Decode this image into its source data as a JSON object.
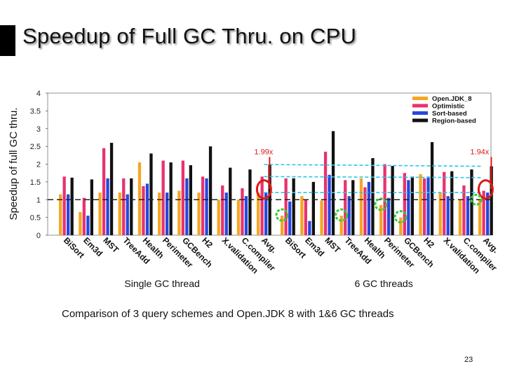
{
  "slide": {
    "title": "Speedup of Full GC Thru. on CPU",
    "caption": "Comparison of 3 query schemes and Open.JDK 8 with 1&6 GC threads",
    "page_number": "23"
  },
  "chart_data": {
    "type": "bar",
    "ylabel": "Speedup of full GC thru.",
    "ylim": [
      0,
      4
    ],
    "yticks": [
      "0",
      "0.5",
      "1",
      "1.5",
      "2",
      "2.5",
      "3",
      "3.5",
      "4"
    ],
    "reference_line": 1,
    "legend_position": "top-right",
    "groups": [
      {
        "label": "Single GC thread",
        "categories": [
          "BiSort",
          "Em3d",
          "MST",
          "TreeAdd",
          "Health",
          "Perimeter",
          "GCBench",
          "H2",
          "X.validation",
          "C.compiler",
          "Avg."
        ],
        "series": [
          {
            "name": "Open.JDK_8",
            "color": "#f5a623",
            "values": [
              1.15,
              0.65,
              1.2,
              1.2,
              2.05,
              1.2,
              1.25,
              1.2,
              1.0,
              1.0,
              1.2
            ]
          },
          {
            "name": "Optimistic",
            "color": "#e8336d",
            "values": [
              1.65,
              1.05,
              2.45,
              1.6,
              1.38,
              2.1,
              2.1,
              1.65,
              1.4,
              1.32,
              1.65
            ]
          },
          {
            "name": "Sort-based",
            "color": "#2747e0",
            "values": [
              1.15,
              0.55,
              1.6,
              1.15,
              1.45,
              1.2,
              1.6,
              1.6,
              1.2,
              1.1,
              1.2
            ]
          },
          {
            "name": "Region-based",
            "color": "#111111",
            "values": [
              1.62,
              1.57,
              2.6,
              1.6,
              2.3,
              2.05,
              1.97,
              2.5,
              1.9,
              1.85,
              1.99
            ]
          }
        ],
        "annotation": "1.99x"
      },
      {
        "label": "6 GC threads",
        "categories": [
          "BiSort",
          "Em3d",
          "MST",
          "TreeAdd",
          "Health",
          "Perimeter",
          "GCBench",
          "H2",
          "X.validation",
          "C.compiler",
          "Avg."
        ],
        "series": [
          {
            "name": "Open.JDK_8",
            "color": "#f5a623",
            "values": [
              0.55,
              1.1,
              0.98,
              0.55,
              1.6,
              0.85,
              0.5,
              1.72,
              1.2,
              1.0,
              1.0
            ]
          },
          {
            "name": "Optimistic",
            "color": "#e8336d",
            "values": [
              1.6,
              1.0,
              2.35,
              1.55,
              1.35,
              2.0,
              1.75,
              1.6,
              1.78,
              1.4,
              1.25
            ]
          },
          {
            "name": "Sort-based",
            "color": "#2747e0",
            "values": [
              0.95,
              0.4,
              1.7,
              1.1,
              1.5,
              1.05,
              1.55,
              1.65,
              1.1,
              1.1,
              1.2
            ]
          },
          {
            "name": "Region-based",
            "color": "#111111",
            "values": [
              1.6,
              1.5,
              2.93,
              1.55,
              2.17,
              1.95,
              1.65,
              2.62,
              1.8,
              1.85,
              1.94
            ]
          }
        ],
        "annotation": "1.94x"
      }
    ]
  }
}
